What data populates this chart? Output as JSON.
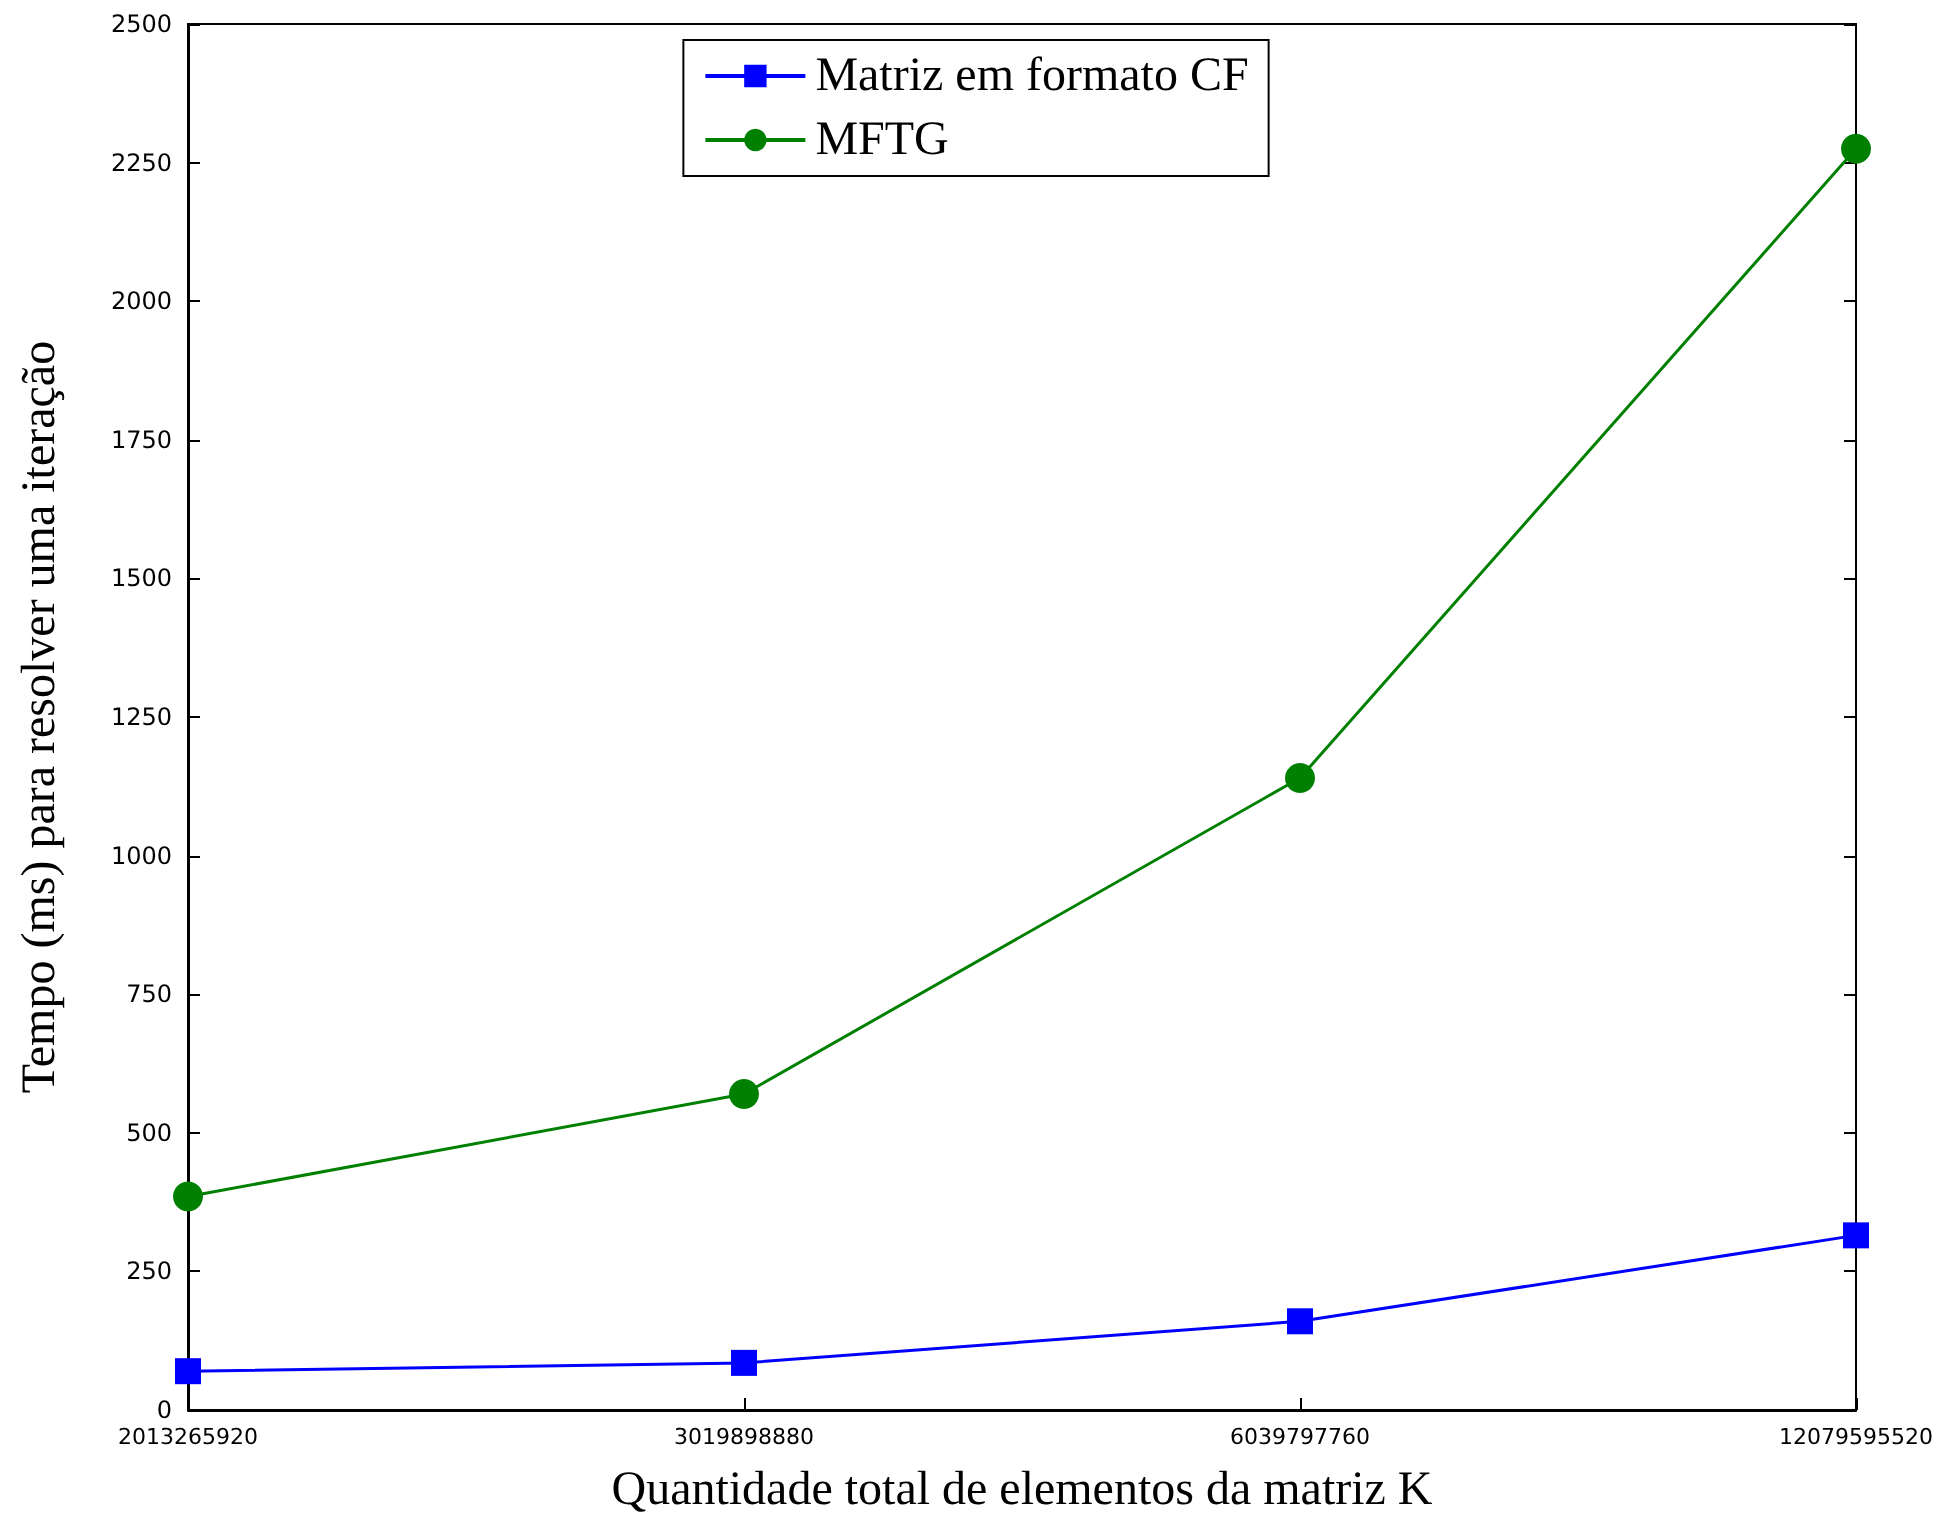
{
  "chart_data": {
    "type": "line",
    "xlabel": "Quantidade total de elementos da matriz K",
    "ylabel": "Tempo (ms) para resolver uma iteração",
    "categories": [
      "2013265920",
      "3019898880",
      "6039797760",
      "12079595520"
    ],
    "series": [
      {
        "name": "Matriz em formato CF",
        "color": "#0000ff",
        "marker": "square",
        "values": [
          70,
          85,
          160,
          315
        ]
      },
      {
        "name": "MFTG",
        "color": "#008000",
        "marker": "circle",
        "values": [
          385,
          570,
          1140,
          2275
        ]
      }
    ],
    "ylim": [
      0,
      2500
    ],
    "yticks": [
      0,
      250,
      500,
      750,
      1000,
      1250,
      1500,
      1750,
      2000,
      2250,
      2500
    ],
    "grid": false,
    "legend": "top",
    "line_style": "solid"
  }
}
